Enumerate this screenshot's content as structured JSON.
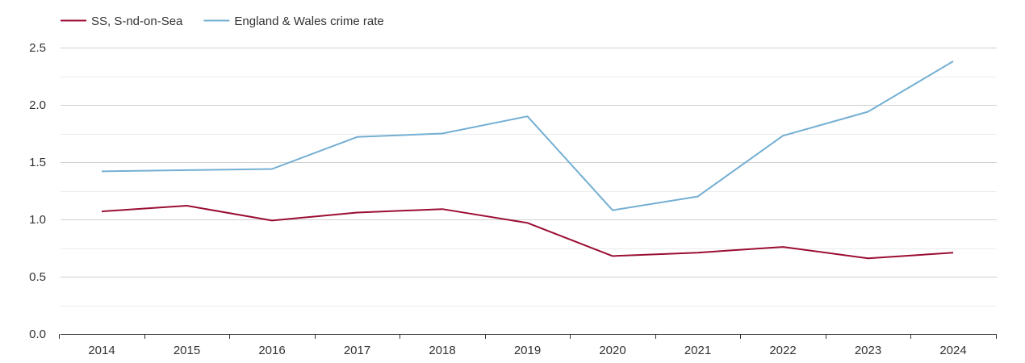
{
  "chart_data": {
    "type": "line",
    "x": [
      "2014",
      "2015",
      "2016",
      "2017",
      "2018",
      "2019",
      "2020",
      "2021",
      "2022",
      "2023",
      "2024"
    ],
    "series": [
      {
        "name": "SS, S-nd-on-Sea",
        "color": "#9b0d33",
        "values": [
          1.07,
          1.12,
          0.99,
          1.06,
          1.09,
          0.97,
          0.68,
          0.71,
          0.76,
          0.66,
          0.71
        ]
      },
      {
        "name": "England & Wales crime rate",
        "color": "#74afd3",
        "values": [
          1.42,
          1.43,
          1.44,
          1.72,
          1.75,
          1.9,
          1.08,
          1.2,
          1.73,
          1.94,
          2.38
        ]
      }
    ],
    "ylim": [
      0,
      2.5
    ],
    "yticks": [
      "0.0",
      "0.5",
      "1.0",
      "1.5",
      "2.0",
      "2.5"
    ],
    "grid": true,
    "legend_position": "top-left"
  }
}
